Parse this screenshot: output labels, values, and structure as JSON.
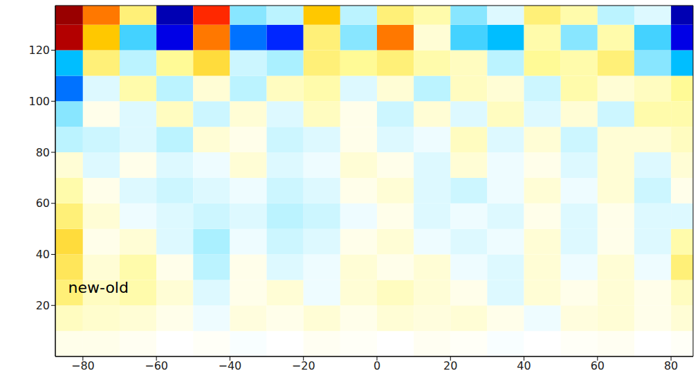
{
  "chart_data": {
    "type": "heatmap",
    "grid": false,
    "xlim": [
      -87.5,
      86
    ],
    "ylim": [
      0,
      137.5
    ],
    "xticks": [
      -80,
      -60,
      -40,
      -20,
      0,
      20,
      40,
      60,
      80
    ],
    "yticks": [
      20,
      40,
      60,
      80,
      100,
      120
    ],
    "x_edges": [
      -90,
      -80,
      -70,
      -60,
      -50,
      -40,
      -30,
      -20,
      -10,
      0,
      10,
      20,
      30,
      40,
      50,
      60,
      70,
      80,
      90
    ],
    "y_edges": [
      0,
      10,
      20,
      30,
      40,
      50,
      60,
      70,
      80,
      90,
      100,
      110,
      120,
      130,
      140
    ],
    "clim": [
      -1,
      1
    ],
    "annotation": {
      "text": "new-old",
      "x": -84,
      "y": 27
    },
    "values": [
      [
        0.05,
        0.05,
        0.03,
        0,
        0.02,
        -0.02,
        0,
        0.03,
        0.02,
        0,
        0.03,
        0.02,
        -0.02,
        0,
        0.02,
        0.03,
        0,
        0.02
      ],
      [
        0.15,
        0.12,
        0.1,
        0.05,
        -0.05,
        0.08,
        0.05,
        0.1,
        0.05,
        0.1,
        0.08,
        0.1,
        0.05,
        -0.05,
        0.08,
        0.1,
        0.05,
        0.1
      ],
      [
        0.3,
        0.15,
        0.2,
        0.1,
        -0.1,
        0.05,
        0.1,
        -0.05,
        0.1,
        0.15,
        0.1,
        0.05,
        -0.1,
        0.1,
        0.05,
        0.1,
        0.05,
        0.15
      ],
      [
        0.35,
        0.1,
        0.2,
        0.05,
        -0.2,
        0.05,
        -0.1,
        -0.05,
        0.1,
        0.05,
        0.1,
        -0.05,
        -0.1,
        0.1,
        -0.05,
        0.1,
        -0.05,
        0.3
      ],
      [
        0.4,
        0.05,
        0.1,
        -0.1,
        -0.25,
        -0.05,
        -0.15,
        -0.1,
        0.05,
        0.1,
        -0.05,
        -0.1,
        -0.05,
        0.1,
        -0.1,
        0.05,
        -0.1,
        0.2
      ],
      [
        0.3,
        0.1,
        -0.05,
        -0.1,
        -0.15,
        -0.1,
        -0.2,
        -0.15,
        -0.05,
        0.05,
        -0.1,
        -0.05,
        -0.1,
        0.05,
        -0.1,
        0.05,
        -0.1,
        -0.1
      ],
      [
        0.2,
        0.05,
        -0.1,
        -0.15,
        -0.1,
        -0.05,
        -0.15,
        -0.1,
        0.05,
        0.1,
        -0.1,
        -0.15,
        -0.05,
        0.1,
        -0.05,
        0.1,
        -0.15,
        0.05
      ],
      [
        0.1,
        -0.1,
        0.05,
        -0.1,
        -0.05,
        0.1,
        -0.1,
        -0.05,
        0.1,
        0.05,
        -0.1,
        0.1,
        -0.05,
        0.05,
        -0.1,
        0.1,
        -0.1,
        0.1
      ],
      [
        -0.2,
        -0.15,
        -0.1,
        -0.2,
        0.1,
        0.05,
        -0.15,
        -0.1,
        0.05,
        -0.1,
        -0.05,
        0.15,
        -0.1,
        0.1,
        -0.15,
        0.1,
        0.1,
        0.15
      ],
      [
        -0.3,
        0.05,
        -0.1,
        0.15,
        -0.15,
        0.1,
        -0.1,
        0.15,
        0.05,
        -0.15,
        0.1,
        -0.1,
        0.15,
        -0.1,
        0.1,
        -0.15,
        0.2,
        0.2
      ],
      [
        -0.6,
        -0.1,
        0.2,
        -0.2,
        0.1,
        -0.2,
        0.15,
        0.2,
        -0.1,
        0.1,
        -0.2,
        0.15,
        0.1,
        -0.15,
        0.2,
        0.1,
        0.15,
        0.25
      ],
      [
        -0.5,
        0.3,
        -0.2,
        0.25,
        0.4,
        -0.15,
        -0.25,
        0.3,
        0.25,
        0.3,
        0.2,
        0.15,
        -0.2,
        0.25,
        0.2,
        0.3,
        -0.3,
        -0.5
      ],
      [
        0.9,
        0.5,
        -0.4,
        -0.8,
        0.6,
        -0.6,
        -0.7,
        0.3,
        -0.3,
        0.6,
        0.1,
        -0.4,
        -0.5,
        0.2,
        -0.3,
        0.2,
        -0.4,
        -0.8
      ],
      [
        0.95,
        0.6,
        0.3,
        -0.9,
        0.7,
        -0.3,
        -0.2,
        0.5,
        -0.2,
        0.3,
        0.2,
        -0.3,
        -0.1,
        0.3,
        0.2,
        -0.2,
        -0.1,
        -0.9
      ]
    ]
  }
}
